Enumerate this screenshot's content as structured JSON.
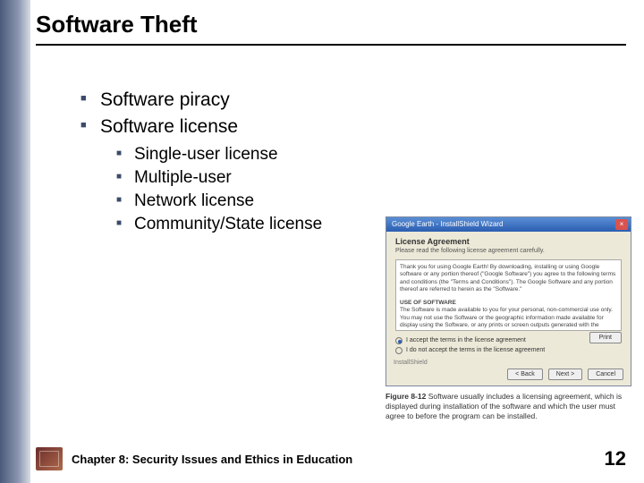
{
  "slide": {
    "title": "Software Theft",
    "bullets_lvl1": [
      {
        "text": "Software piracy"
      },
      {
        "text": "Software license",
        "children": [
          "Single-user license",
          "Multiple-user",
          "Network license",
          "Community/State license"
        ]
      }
    ]
  },
  "figure": {
    "window_title": "Google Earth - InstallShield Wizard",
    "close_glyph": "×",
    "heading": "License Agreement",
    "subheading": "Please read the following license agreement carefully.",
    "license_text_1": "Thank you for using Google Earth! By downloading, installing or using Google software or any portion thereof (\"Google Software\") you agree to the following terms and conditions (the \"Terms and Conditions\"). The Google Software and any portion thereof are referred to herein as the \"Software.\"",
    "license_section": "USE OF SOFTWARE",
    "license_text_2": "The Software is made available to you for your personal, non-commercial use only. You may not use the Software or the geographic information made available for display using the Software, or any prints or screen outputs generated with the Software in any commercial or business environment or for…",
    "radio_accept": "I accept the terms in the license agreement",
    "radio_decline": "I do not accept the terms in the license agreement",
    "print_label": "Print",
    "installshield_label": "InstallShield",
    "btn_back": "< Back",
    "btn_next": "Next >",
    "btn_cancel": "Cancel",
    "caption_label": "Figure 8-12",
    "caption_text": "Software usually includes a licensing agreement, which is displayed during installation of the software and which the user must agree to before the program can be installed."
  },
  "footer": {
    "chapter": "Chapter 8: Security Issues and Ethics in Education",
    "page_number": "12"
  },
  "colors": {
    "sidebar_start": "#4a5a7a",
    "sidebar_end": "#d8dde6",
    "bullet": "#3a4a6a",
    "titlebar_start": "#5a8fd6",
    "titlebar_end": "#2a5db0",
    "installer_bg": "#ece9d8"
  }
}
